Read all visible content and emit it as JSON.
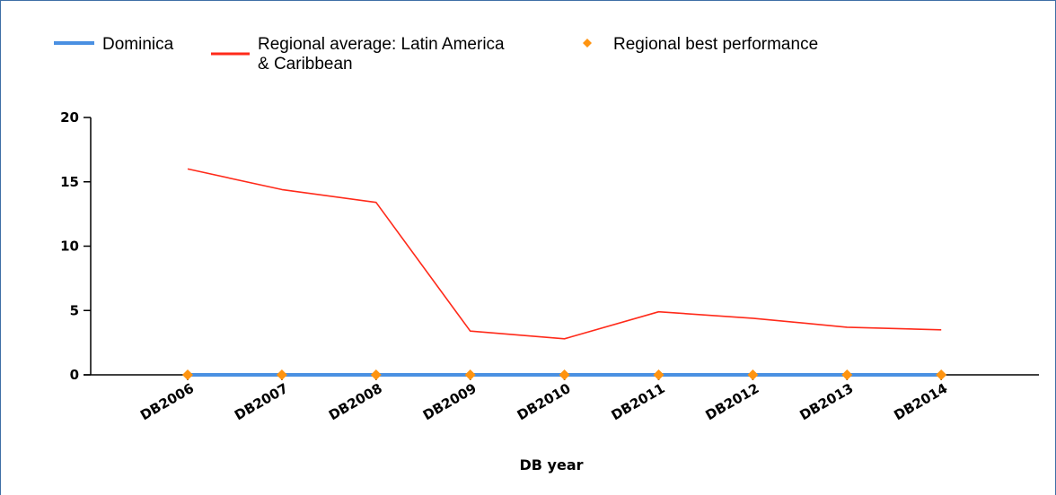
{
  "chart_data": {
    "type": "line",
    "title": "",
    "xlabel": "DB year",
    "ylabel": "",
    "categories": [
      "DB2006",
      "DB2007",
      "DB2008",
      "DB2009",
      "DB2010",
      "DB2011",
      "DB2012",
      "DB2013",
      "DB2014"
    ],
    "ylim": [
      0,
      20
    ],
    "yticks": [
      "0",
      "5",
      "10",
      "15",
      "20"
    ],
    "grid": false,
    "legend_position": "top-left",
    "series": [
      {
        "name": "Dominica",
        "kind": "line",
        "color": "#4a90e2",
        "values": [
          0,
          0,
          0,
          0,
          0,
          0,
          0,
          0,
          0
        ]
      },
      {
        "name": "Regional average: Latin America & Caribbean",
        "name_lines": [
          "Regional average: Latin America",
          "& Caribbean"
        ],
        "kind": "line",
        "color": "#ff2a1a",
        "values": [
          16.0,
          14.4,
          13.4,
          3.4,
          2.8,
          4.9,
          4.4,
          3.7,
          3.5
        ]
      },
      {
        "name": "Regional best performance",
        "kind": "marker",
        "color": "#ff9410",
        "values": [
          0,
          0,
          0,
          0,
          0,
          0,
          0,
          0,
          0
        ]
      }
    ]
  }
}
